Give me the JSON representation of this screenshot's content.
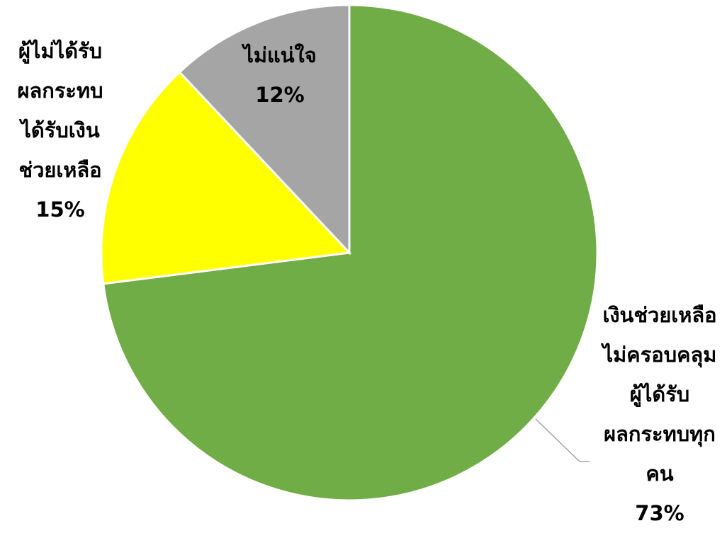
{
  "chart_data": {
    "type": "pie",
    "start_angle_deg": 0,
    "direction": "clockwise",
    "slices": [
      {
        "lines": [
          "เงินช่วยเหลือ",
          "ไม่ครอบคลุม",
          "ผู้ได้รับ",
          "ผลกระทบทุก",
          "คน"
        ],
        "percent_label": "73%",
        "value": 73,
        "color": "#70AD47"
      },
      {
        "lines": [
          "ผู้ไม่ได้รับ",
          "ผลกระทบ",
          "ได้รับเงิน",
          "ช่วยเหลือ"
        ],
        "percent_label": "15%",
        "value": 15,
        "color": "#FFFF00"
      },
      {
        "lines": [
          "ไม่แน่ใจ"
        ],
        "percent_label": "12%",
        "value": 12,
        "color": "#A5A5A5"
      }
    ],
    "slice_border_color": "#FFFFFF",
    "leader_line_color": "#A5A5A5"
  }
}
